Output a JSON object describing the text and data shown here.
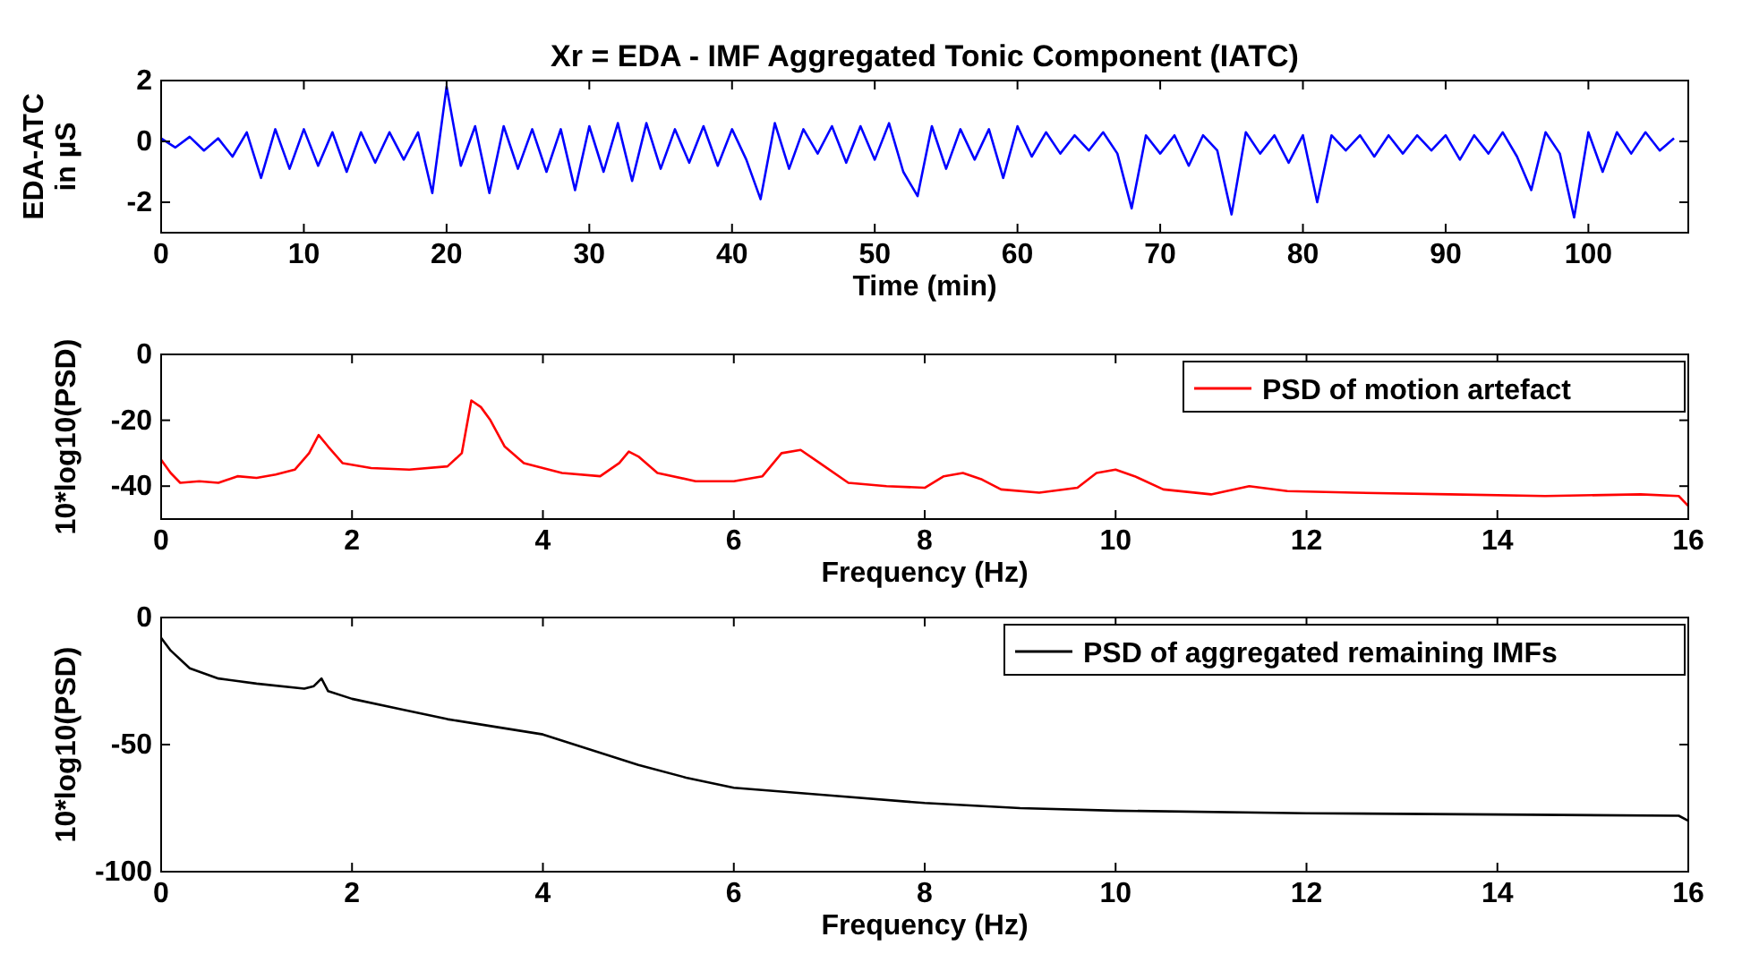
{
  "chart_data": [
    {
      "type": "line",
      "title": "Xr = EDA - IMF Aggregated Tonic Component (IATC)",
      "xlabel": "Time (min)",
      "ylabel": "EDA-ATC in µS",
      "xlim": [
        0,
        107
      ],
      "xticks": [
        0,
        10,
        20,
        30,
        40,
        50,
        60,
        70,
        80,
        90,
        100
      ],
      "ylim": [
        -3,
        2
      ],
      "yticks": [
        -2,
        0,
        2
      ],
      "legend": false,
      "grid": false,
      "series": [
        {
          "color": "#0000ff",
          "x": [
            0,
            1,
            2,
            3,
            4,
            5,
            6,
            7,
            8,
            9,
            10,
            11,
            12,
            13,
            14,
            15,
            16,
            17,
            18,
            19,
            20,
            21,
            22,
            23,
            24,
            25,
            26,
            27,
            28,
            29,
            30,
            31,
            32,
            33,
            34,
            35,
            36,
            37,
            38,
            39,
            40,
            41,
            42,
            43,
            44,
            45,
            46,
            47,
            48,
            49,
            50,
            51,
            52,
            53,
            54,
            55,
            56,
            57,
            58,
            59,
            60,
            61,
            62,
            63,
            64,
            65,
            66,
            67,
            68,
            69,
            70,
            71,
            72,
            73,
            74,
            75,
            76,
            77,
            78,
            79,
            80,
            81,
            82,
            83,
            84,
            85,
            86,
            87,
            88,
            89,
            90,
            91,
            92,
            93,
            94,
            95,
            96,
            97,
            98,
            99,
            100,
            101,
            102,
            103,
            104,
            105,
            106
          ],
          "values": [
            0.1,
            -0.2,
            0.15,
            -0.3,
            0.1,
            -0.5,
            0.3,
            -1.2,
            0.4,
            -0.9,
            0.4,
            -0.8,
            0.3,
            -1.0,
            0.3,
            -0.7,
            0.3,
            -0.6,
            0.3,
            -1.7,
            1.8,
            -0.8,
            0.5,
            -1.7,
            0.5,
            -0.9,
            0.4,
            -1.0,
            0.4,
            -1.6,
            0.5,
            -1.0,
            0.6,
            -1.3,
            0.6,
            -0.9,
            0.4,
            -0.7,
            0.5,
            -0.8,
            0.4,
            -0.6,
            -1.9,
            0.6,
            -0.9,
            0.4,
            -0.4,
            0.5,
            -0.7,
            0.5,
            -0.6,
            0.6,
            -1.0,
            -1.8,
            0.5,
            -0.9,
            0.4,
            -0.6,
            0.4,
            -1.2,
            0.5,
            -0.5,
            0.3,
            -0.4,
            0.2,
            -0.3,
            0.3,
            -0.4,
            -2.2,
            0.2,
            -0.4,
            0.2,
            -0.8,
            0.2,
            -0.3,
            -2.4,
            0.3,
            -0.4,
            0.2,
            -0.7,
            0.2,
            -2.0,
            0.2,
            -0.3,
            0.2,
            -0.5,
            0.2,
            -0.4,
            0.2,
            -0.3,
            0.2,
            -0.6,
            0.2,
            -0.4,
            0.3,
            -0.5,
            -1.6,
            0.3,
            -0.4,
            -2.5,
            0.3,
            -1.0,
            0.3,
            -0.4,
            0.3,
            -0.3,
            0.1
          ]
        }
      ]
    },
    {
      "type": "line",
      "xlabel": "Frequency (Hz)",
      "ylabel": "10*log10(PSD)",
      "xlim": [
        0,
        16
      ],
      "xticks": [
        0,
        2,
        4,
        6,
        8,
        10,
        12,
        14,
        16
      ],
      "ylim": [
        -50,
        0
      ],
      "yticks": [
        -40,
        -20,
        0
      ],
      "legend": "top right",
      "grid": false,
      "series": [
        {
          "name": "PSD of motion artefact",
          "color": "#ff0000",
          "x": [
            0,
            0.1,
            0.2,
            0.4,
            0.6,
            0.8,
            1.0,
            1.2,
            1.4,
            1.55,
            1.65,
            1.75,
            1.9,
            2.2,
            2.6,
            3.0,
            3.15,
            3.25,
            3.35,
            3.45,
            3.6,
            3.8,
            4.2,
            4.6,
            4.8,
            4.9,
            5.0,
            5.2,
            5.6,
            6.0,
            6.3,
            6.5,
            6.7,
            6.9,
            7.2,
            7.6,
            8.0,
            8.2,
            8.4,
            8.6,
            8.8,
            9.2,
            9.6,
            9.8,
            10.0,
            10.2,
            10.5,
            11.0,
            11.4,
            11.8,
            12.5,
            13.5,
            14.5,
            15.5,
            15.9,
            16
          ],
          "values": [
            -32,
            -36,
            -39,
            -38.5,
            -39,
            -37,
            -37.5,
            -36.5,
            -35,
            -30,
            -24.5,
            -28,
            -33,
            -34.5,
            -35,
            -34,
            -30,
            -14,
            -16,
            -20,
            -28,
            -33,
            -36,
            -37,
            -33,
            -29.5,
            -31,
            -36,
            -38.5,
            -38.5,
            -37,
            -30,
            -29,
            -33,
            -39,
            -40,
            -40.5,
            -37,
            -36,
            -38,
            -41,
            -42,
            -40.5,
            -36,
            -35,
            -37,
            -41,
            -42.5,
            -40,
            -41.5,
            -42,
            -42.5,
            -43,
            -42.5,
            -43,
            -46
          ]
        }
      ]
    },
    {
      "type": "line",
      "xlabel": "Frequency (Hz)",
      "ylabel": "10*log10(PSD)",
      "xlim": [
        0,
        16
      ],
      "xticks": [
        0,
        2,
        4,
        6,
        8,
        10,
        12,
        14,
        16
      ],
      "ylim": [
        -100,
        0
      ],
      "yticks": [
        -100,
        -50,
        0
      ],
      "legend": "top right",
      "grid": false,
      "series": [
        {
          "name": "PSD of aggregated remaining IMFs",
          "color": "#000000",
          "x": [
            0,
            0.1,
            0.3,
            0.6,
            1.0,
            1.5,
            1.6,
            1.68,
            1.75,
            2.0,
            2.5,
            3.0,
            3.5,
            4.0,
            4.5,
            5.0,
            5.5,
            6.0,
            7.0,
            8.0,
            9.0,
            10.0,
            12.0,
            14.0,
            15.9,
            16
          ],
          "values": [
            -8,
            -13,
            -20,
            -24,
            -26,
            -28,
            -27,
            -24,
            -29,
            -32,
            -36,
            -40,
            -43,
            -46,
            -52,
            -58,
            -63,
            -67,
            -70,
            -73,
            -75,
            -76,
            -77,
            -77.5,
            -78,
            -80
          ]
        }
      ]
    }
  ]
}
